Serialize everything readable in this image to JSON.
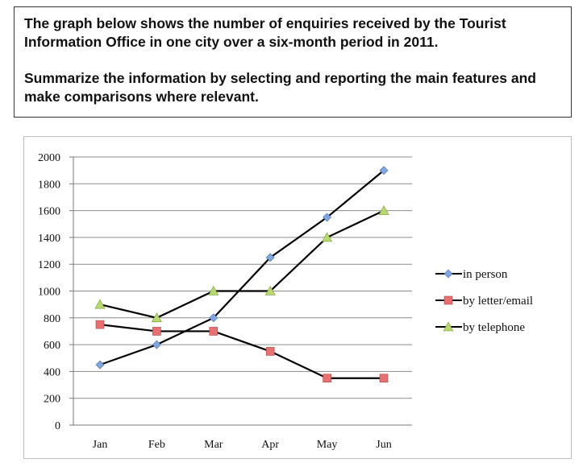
{
  "prompt": {
    "paragraph1": "The graph below shows the number of enquiries received by the Tourist Information Office in one city over a six-month period in 2011.",
    "paragraph2": "Summarize the information by selecting and reporting the main features and make comparisons where relevant."
  },
  "chart_data": {
    "type": "line",
    "title": "",
    "xlabel": "",
    "ylabel": "",
    "categories": [
      "Jan",
      "Feb",
      "Mar",
      "Apr",
      "May",
      "Jun"
    ],
    "yticks": [
      "0",
      "200",
      "400",
      "600",
      "800",
      "1000",
      "1200",
      "1400",
      "1600",
      "1800",
      "2000"
    ],
    "ylim": [
      0,
      2000
    ],
    "grid": "horizontal",
    "legend_position": "right",
    "series": [
      {
        "name": "in person",
        "values": [
          450,
          600,
          800,
          1250,
          1550,
          1900
        ],
        "marker": "diamond",
        "color": "#7ea6e0"
      },
      {
        "name": "by letter/email",
        "values": [
          750,
          700,
          700,
          550,
          350,
          350
        ],
        "marker": "square",
        "color": "#e87070"
      },
      {
        "name": "by telephone",
        "values": [
          900,
          800,
          1000,
          1000,
          1400,
          1600
        ],
        "marker": "triangle",
        "color": "#b5d96a"
      }
    ]
  }
}
